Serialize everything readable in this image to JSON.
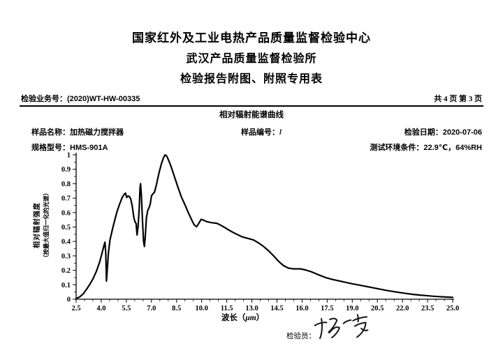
{
  "page": {
    "title1": "国家红外及工业电热产品质量监督检验中心",
    "title2": "武汉产品质量监督检验所",
    "title3": "检验报告附图、附照专用表"
  },
  "info_row": {
    "business_label": "检验业务号：",
    "business_value": "(2020)WT-HW-00335",
    "pages": "共 4 页 第 3 页"
  },
  "section": {
    "title": "相对辐射能谱曲线",
    "fields": {
      "sample_name": {
        "label": "样品名称：",
        "value": "加热磁力搅拌器"
      },
      "sample_no": {
        "label": "样品编号：",
        "value": "/"
      },
      "inspect_date": {
        "label": "检验日期：",
        "value": "2020-07-06"
      },
      "model": {
        "label": "规格型号：",
        "value": "HMS-901A"
      },
      "test_env": {
        "label": "测试环境条件：",
        "value": "22.9℃，64%RH"
      }
    }
  },
  "footer": {
    "inspector_label": "检验员：",
    "inspector_signature": "杨一芳"
  },
  "chart_data": {
    "type": "line",
    "title": "相对辐射能谱曲线",
    "xlabel": "波长（μm）",
    "xlabel_parts": {
      "prefix": "波长（",
      "unit": "μm",
      "suffix": "）"
    },
    "ylabel_line1": "相对辐射强度",
    "ylabel_line2": "（按最大值归一化的光谱）",
    "xlim": [
      2.5,
      25.0
    ],
    "ylim": [
      0,
      1
    ],
    "grid": false,
    "legend": "none",
    "line_color": "#000000",
    "x_minor_step": 0.5,
    "y_minor_step": 0.05,
    "x_ticks": {
      "values": [
        2.5,
        4.0,
        5.5,
        7.0,
        8.5,
        10.0,
        11.5,
        13.0,
        14.5,
        16.0,
        17.5,
        19.0,
        20.5,
        22.0,
        23.5,
        25.0
      ],
      "labels": [
        "2.5",
        "4.0",
        "5.5",
        "7.0",
        "8.5",
        "10.0",
        "11.5",
        "13.0",
        "14.5",
        "16.0",
        "17.5",
        "19.0",
        "20.5",
        "22.0",
        "23.5",
        "25.0"
      ]
    },
    "y_ticks": {
      "values": [
        0,
        0.1,
        0.2,
        0.3,
        0.4,
        0.5,
        0.6,
        0.7,
        0.8,
        0.9,
        1
      ],
      "labels": [
        "0",
        "0.1",
        "0.2",
        "0.3",
        "0.4",
        "0.5",
        "0.6",
        "0.7",
        "0.8",
        "0.9",
        "1"
      ]
    },
    "series": [
      {
        "name": "相对辐射强度（归一化）",
        "points": [
          [
            2.5,
            0.005
          ],
          [
            2.7,
            0.015
          ],
          [
            2.9,
            0.035
          ],
          [
            3.1,
            0.065
          ],
          [
            3.3,
            0.1
          ],
          [
            3.5,
            0.14
          ],
          [
            3.7,
            0.19
          ],
          [
            3.9,
            0.255
          ],
          [
            4.05,
            0.32
          ],
          [
            4.15,
            0.365
          ],
          [
            4.22,
            0.395
          ],
          [
            4.27,
            0.32
          ],
          [
            4.31,
            0.125
          ],
          [
            4.36,
            0.21
          ],
          [
            4.43,
            0.32
          ],
          [
            4.52,
            0.41
          ],
          [
            4.65,
            0.475
          ],
          [
            4.8,
            0.545
          ],
          [
            4.95,
            0.61
          ],
          [
            5.1,
            0.66
          ],
          [
            5.25,
            0.705
          ],
          [
            5.38,
            0.728
          ],
          [
            5.45,
            0.735
          ],
          [
            5.52,
            0.705
          ],
          [
            5.6,
            0.715
          ],
          [
            5.68,
            0.71
          ],
          [
            5.76,
            0.695
          ],
          [
            5.85,
            0.645
          ],
          [
            5.95,
            0.565
          ],
          [
            6.02,
            0.535
          ],
          [
            6.08,
            0.525
          ],
          [
            6.14,
            0.445
          ],
          [
            6.2,
            0.5
          ],
          [
            6.27,
            0.63
          ],
          [
            6.32,
            0.775
          ],
          [
            6.35,
            0.8
          ],
          [
            6.4,
            0.72
          ],
          [
            6.46,
            0.55
          ],
          [
            6.53,
            0.4
          ],
          [
            6.58,
            0.365
          ],
          [
            6.63,
            0.43
          ],
          [
            6.7,
            0.565
          ],
          [
            6.78,
            0.615
          ],
          [
            6.86,
            0.635
          ],
          [
            6.93,
            0.66
          ],
          [
            7.0,
            0.715
          ],
          [
            7.08,
            0.73
          ],
          [
            7.18,
            0.74
          ],
          [
            7.3,
            0.795
          ],
          [
            7.45,
            0.875
          ],
          [
            7.6,
            0.94
          ],
          [
            7.72,
            0.98
          ],
          [
            7.82,
            1.0
          ],
          [
            7.92,
            0.99
          ],
          [
            8.05,
            0.955
          ],
          [
            8.2,
            0.91
          ],
          [
            8.4,
            0.84
          ],
          [
            8.6,
            0.77
          ],
          [
            8.8,
            0.705
          ],
          [
            9.0,
            0.655
          ],
          [
            9.2,
            0.6
          ],
          [
            9.4,
            0.55
          ],
          [
            9.55,
            0.515
          ],
          [
            9.7,
            0.502
          ],
          [
            9.85,
            0.53
          ],
          [
            9.97,
            0.553
          ],
          [
            10.1,
            0.548
          ],
          [
            10.3,
            0.537
          ],
          [
            10.6,
            0.53
          ],
          [
            10.9,
            0.526
          ],
          [
            11.1,
            0.515
          ],
          [
            11.4,
            0.495
          ],
          [
            11.7,
            0.474
          ],
          [
            12.0,
            0.455
          ],
          [
            12.4,
            0.433
          ],
          [
            12.8,
            0.42
          ],
          [
            13.1,
            0.41
          ],
          [
            13.4,
            0.39
          ],
          [
            13.7,
            0.365
          ],
          [
            14.0,
            0.335
          ],
          [
            14.3,
            0.3
          ],
          [
            14.6,
            0.262
          ],
          [
            14.9,
            0.232
          ],
          [
            15.2,
            0.215
          ],
          [
            15.5,
            0.21
          ],
          [
            15.9,
            0.21
          ],
          [
            16.2,
            0.203
          ],
          [
            16.6,
            0.188
          ],
          [
            17.0,
            0.168
          ],
          [
            17.4,
            0.15
          ],
          [
            17.8,
            0.137
          ],
          [
            18.2,
            0.127
          ],
          [
            18.6,
            0.117
          ],
          [
            19.0,
            0.107
          ],
          [
            19.4,
            0.098
          ],
          [
            19.8,
            0.089
          ],
          [
            20.2,
            0.08
          ],
          [
            20.6,
            0.071
          ],
          [
            21.0,
            0.062
          ],
          [
            21.4,
            0.054
          ],
          [
            21.8,
            0.047
          ],
          [
            22.2,
            0.04
          ],
          [
            22.6,
            0.034
          ],
          [
            23.0,
            0.029
          ],
          [
            23.4,
            0.025
          ],
          [
            23.8,
            0.021
          ],
          [
            24.2,
            0.018
          ],
          [
            24.6,
            0.015
          ],
          [
            25.0,
            0.013
          ]
        ]
      }
    ]
  }
}
